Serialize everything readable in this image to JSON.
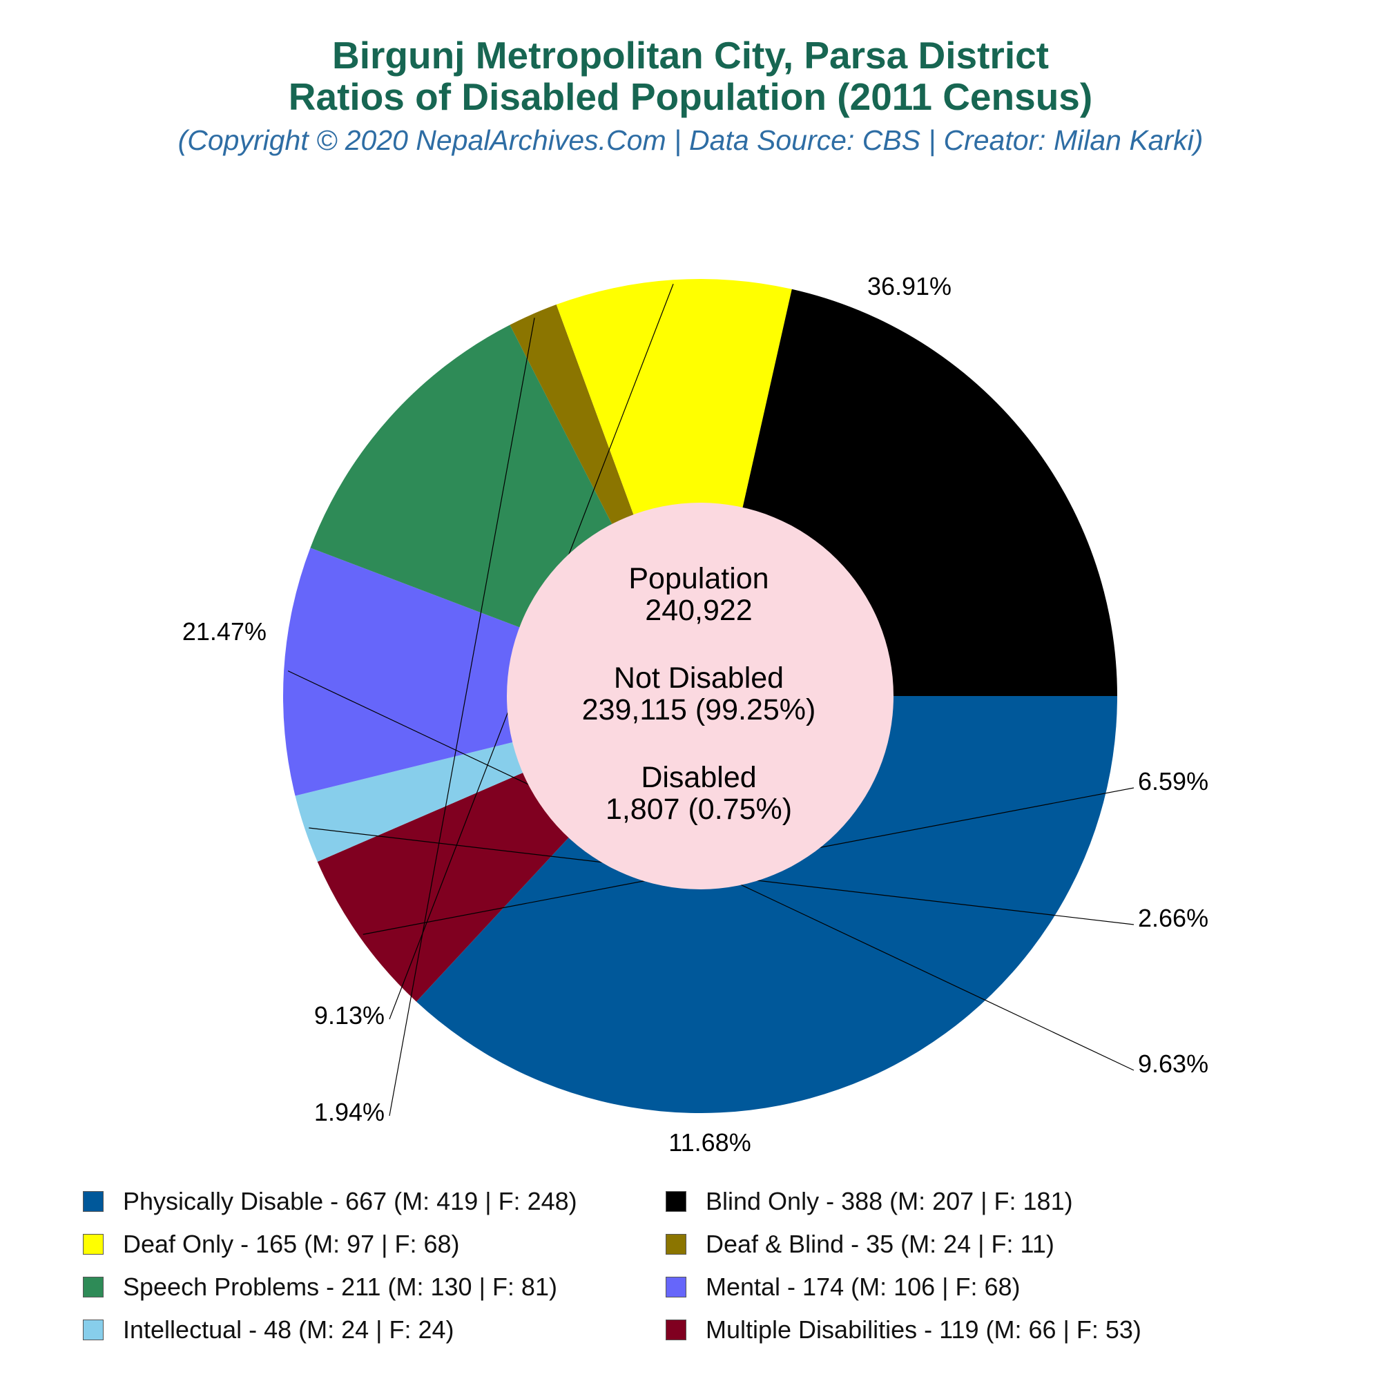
{
  "header": {
    "title_line1": "Birgunj Metropolitan City, Parsa District",
    "title_line2": "Ratios of Disabled Population (2011 Census)",
    "subtitle": "(Copyright © 2020 NepalArchives.Com | Data Source: CBS | Creator: Milan Karki)"
  },
  "center": {
    "population_label": "Population",
    "population_value": "240,922",
    "not_disabled_label": "Not Disabled",
    "not_disabled_value": "239,115 (99.25%)",
    "disabled_label": "Disabled",
    "disabled_value": "1,807 (0.75%)",
    "color": "#fbd9e0"
  },
  "chart_data": {
    "type": "pie",
    "variant": "donut",
    "slices": [
      {
        "label": "Physically Disable",
        "value": 667,
        "percent": "36.91%",
        "male": 419,
        "female": 248,
        "color": "#00589a"
      },
      {
        "label": "Multiple Disabilities",
        "value": 119,
        "percent": "6.59%",
        "male": 66,
        "female": 53,
        "color": "#800020"
      },
      {
        "label": "Intellectual",
        "value": 48,
        "percent": "2.66%",
        "male": 24,
        "female": 24,
        "color": "#87ceeb"
      },
      {
        "label": "Mental",
        "value": 174,
        "percent": "9.63%",
        "male": 106,
        "female": 68,
        "color": "#6666fa"
      },
      {
        "label": "Speech Problems",
        "value": 211,
        "percent": "11.68%",
        "male": 130,
        "female": 81,
        "color": "#2e8b57"
      },
      {
        "label": "Deaf & Blind",
        "value": 35,
        "percent": "1.94%",
        "male": 24,
        "female": 11,
        "color": "#8b7500"
      },
      {
        "label": "Deaf Only",
        "value": 165,
        "percent": "9.13%",
        "male": 97,
        "female": 68,
        "color": "#ffff00"
      },
      {
        "label": "Blind Only",
        "value": 388,
        "percent": "21.47%",
        "male": 207,
        "female": 181,
        "color": "#000000"
      }
    ],
    "legend": [
      {
        "text": "Physically Disable - 667 (M: 419 | F: 248)",
        "color": "#00589a"
      },
      {
        "text": "Blind Only - 388 (M: 207 | F: 181)",
        "color": "#000000"
      },
      {
        "text": "Deaf Only - 165 (M: 97 | F: 68)",
        "color": "#ffff00"
      },
      {
        "text": "Deaf & Blind - 35 (M: 24 | F: 11)",
        "color": "#8b7500"
      },
      {
        "text": "Speech Problems - 211 (M: 130 | F: 81)",
        "color": "#2e8b57"
      },
      {
        "text": "Mental - 174 (M: 106 | F: 68)",
        "color": "#6666fa"
      },
      {
        "text": "Intellectual - 48 (M: 24 | F: 24)",
        "color": "#87ceeb"
      },
      {
        "text": "Multiple Disabilities - 119 (M: 66 | F: 53)",
        "color": "#800020"
      }
    ],
    "legend_placement": "bottom"
  }
}
